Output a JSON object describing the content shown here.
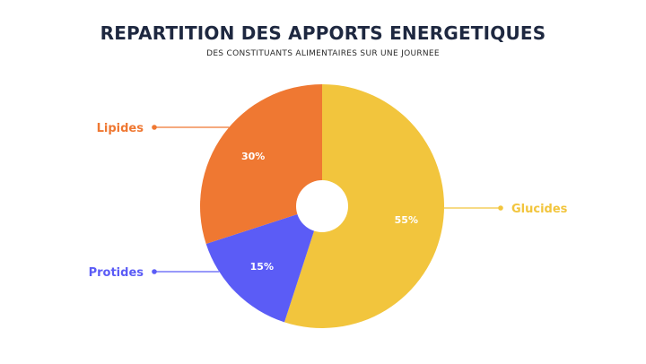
{
  "chart_data": {
    "type": "pie",
    "title": "REPARTITION DES APPORTS ENERGETIQUES",
    "subtitle": "DES CONSTITUANTS ALIMENTAIRES SUR UNE JOURNEE",
    "slices": [
      {
        "name": "Glucides",
        "value": 55,
        "label": "55%",
        "color": "#f2c53d"
      },
      {
        "name": "Protides",
        "value": 15,
        "label": "15%",
        "color": "#5b5cf6"
      },
      {
        "name": "Lipides",
        "value": 30,
        "label": "30%",
        "color": "#ef7832"
      }
    ],
    "donut": true
  }
}
